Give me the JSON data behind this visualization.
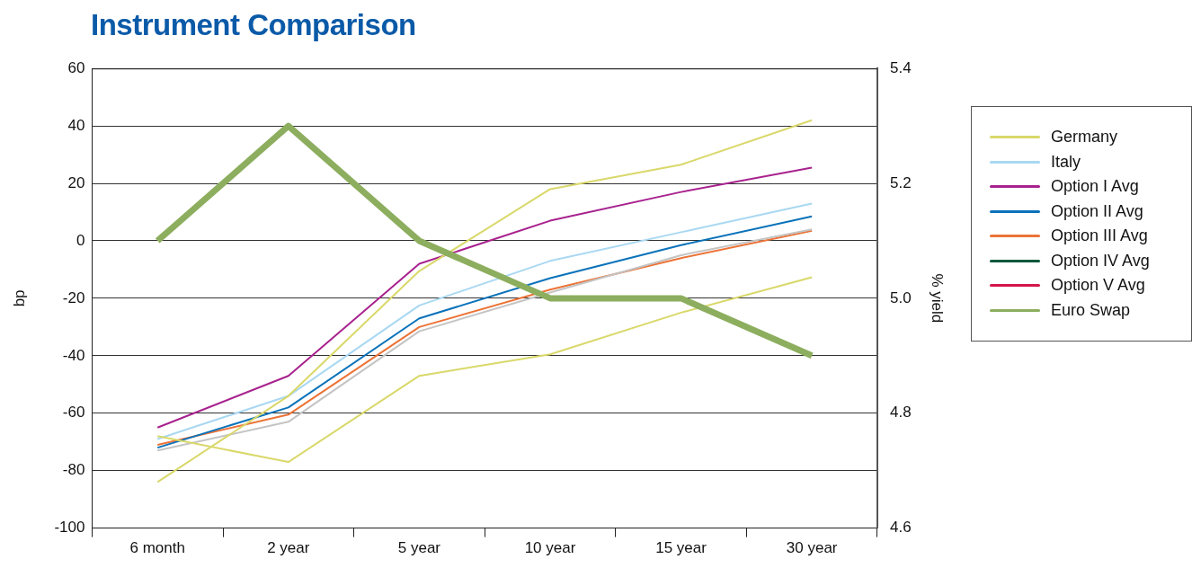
{
  "chart_data": {
    "type": "line",
    "title": "Instrument Comparison",
    "ylabel": "bp",
    "y2label": "% yield",
    "categories": [
      "6 month",
      "2 year",
      "5 year",
      "10 year",
      "15 year",
      "30 year"
    ],
    "ylim": [
      -100,
      60
    ],
    "yticks": [
      -100,
      -80,
      -60,
      -40,
      -20,
      0,
      20,
      40,
      60
    ],
    "y2lim": [
      4.6,
      5.4
    ],
    "y2ticks": [
      {
        "value": 4.6,
        "label": "4.6"
      },
      {
        "value": 4.8,
        "label": "4.8"
      },
      {
        "value": 5.0,
        "label": "5.0"
      },
      {
        "value": 5.2,
        "label": "5.2"
      },
      {
        "value": 5.4,
        "label": "5.4"
      }
    ],
    "grid": "y",
    "legend": "right",
    "marker": "none",
    "line_style": "solid",
    "series": [
      {
        "name": "Germany",
        "color": "#d9d86a",
        "values": [
          -84,
          -54,
          -10.5,
          18,
          26.5,
          42
        ]
      },
      {
        "color": "#d9d86a",
        "values": [
          -68,
          -77,
          -47,
          -39.5,
          -25,
          -12.7
        ]
      },
      {
        "name": "Italy",
        "color": "#a9d8f2",
        "values": [
          -69,
          -54,
          -22.5,
          -7,
          3,
          13
        ]
      },
      {
        "name": "Option I Avg",
        "color": "#a8228e",
        "values": [
          -65,
          -47,
          -8,
          7,
          17,
          25.5
        ]
      },
      {
        "name": "Option II Avg",
        "color": "#0a72ba",
        "values": [
          -72,
          -58,
          -27,
          -13,
          -1.5,
          8.5
        ]
      },
      {
        "color": "#c4c4c4",
        "values": [
          -73,
          -63,
          -31.5,
          -18,
          -5,
          4
        ]
      },
      {
        "name": "Option III Avg",
        "color": "#ec7336",
        "values": [
          -71,
          -60.5,
          -30,
          -17,
          -6,
          3.5
        ]
      },
      {
        "name": "Option IV Avg",
        "color": "#00573a",
        "values": [
          null,
          null,
          null,
          null,
          null,
          null
        ]
      },
      {
        "name": "Option V Avg",
        "color": "#d5164b",
        "values": [
          null,
          null,
          null,
          null,
          null,
          null
        ]
      },
      {
        "name": "Euro Swap",
        "color": "#8cae5e",
        "axis": "y2",
        "values": [
          5.1,
          5.3,
          5.1,
          5.0,
          5.0,
          4.9
        ]
      }
    ]
  }
}
